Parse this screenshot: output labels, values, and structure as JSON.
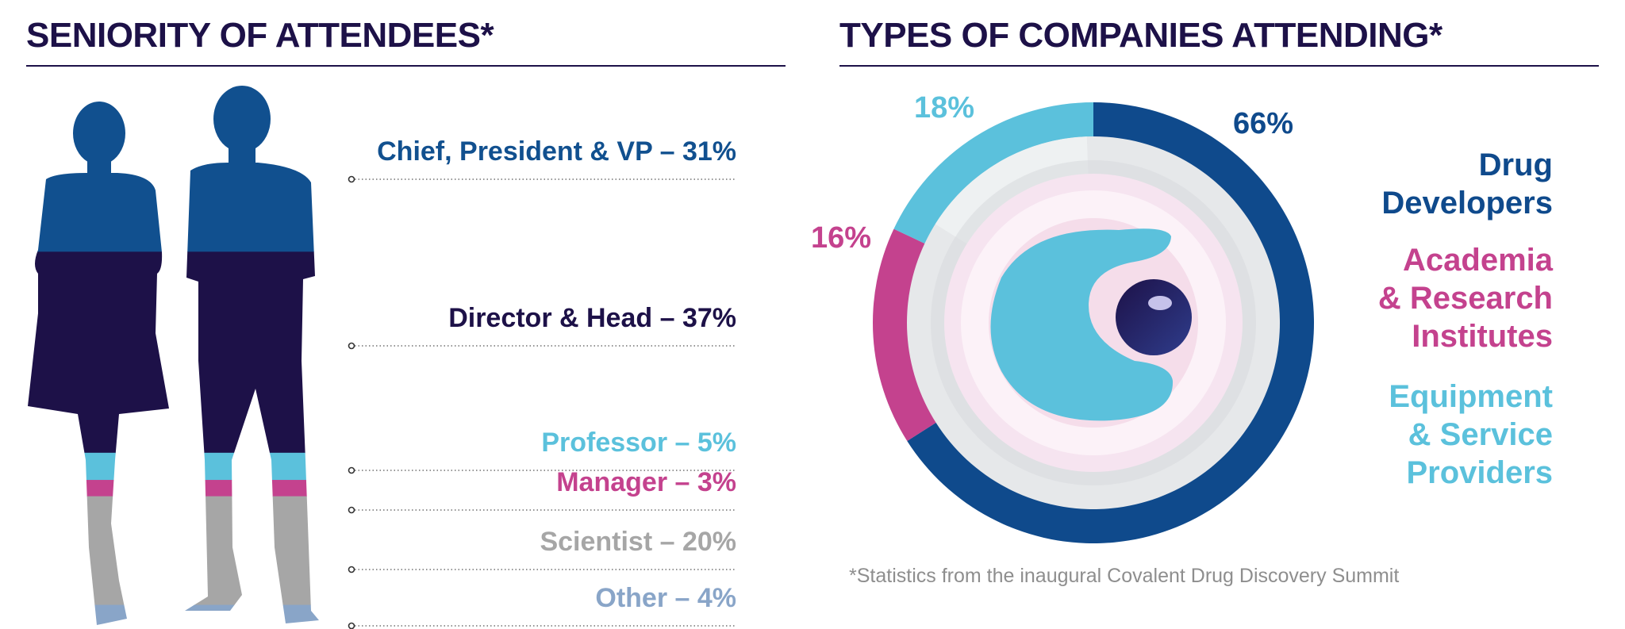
{
  "left_title": "SENIORITY OF ATTENDEES*",
  "right_title": "TYPES OF COMPANIES ATTENDING*",
  "footnote": "*Statistics from the inaugural Covalent Drug Discovery Summit",
  "chart_data": [
    {
      "type": "bar",
      "title": "SENIORITY OF ATTENDEES*",
      "categories": [
        "Chief, President & VP",
        "Director & Head",
        "Professor",
        "Manager",
        "Scientist",
        "Other"
      ],
      "values": [
        31,
        37,
        5,
        3,
        20,
        4
      ],
      "labels": [
        "Chief, President & VP – 31%",
        "Director & Head – 37%",
        "Professor – 5%",
        "Manager – 3%",
        "Scientist – 20%",
        "Other – 4%"
      ],
      "colors": [
        "#11508f",
        "#1d1148",
        "#5bc1dc",
        "#c4428e",
        "#a6a6a6",
        "#89a5c8"
      ],
      "unit": "%"
    },
    {
      "type": "pie",
      "title": "TYPES OF COMPANIES ATTENDING*",
      "categories": [
        "Drug Developers",
        "Academia & Research Institutes",
        "Equipment & Service Providers"
      ],
      "legend_lines": [
        [
          "Drug",
          "Developers"
        ],
        [
          "Academia",
          "& Research",
          "Institutes"
        ],
        [
          "Equipment",
          "& Service",
          "Providers"
        ]
      ],
      "values": [
        66,
        16,
        18
      ],
      "value_labels": [
        "66%",
        "16%",
        "18%"
      ],
      "colors": [
        "#0f4a8c",
        "#c4428e",
        "#5bc1dc"
      ],
      "legend_placement": "right",
      "unit": "%"
    }
  ]
}
